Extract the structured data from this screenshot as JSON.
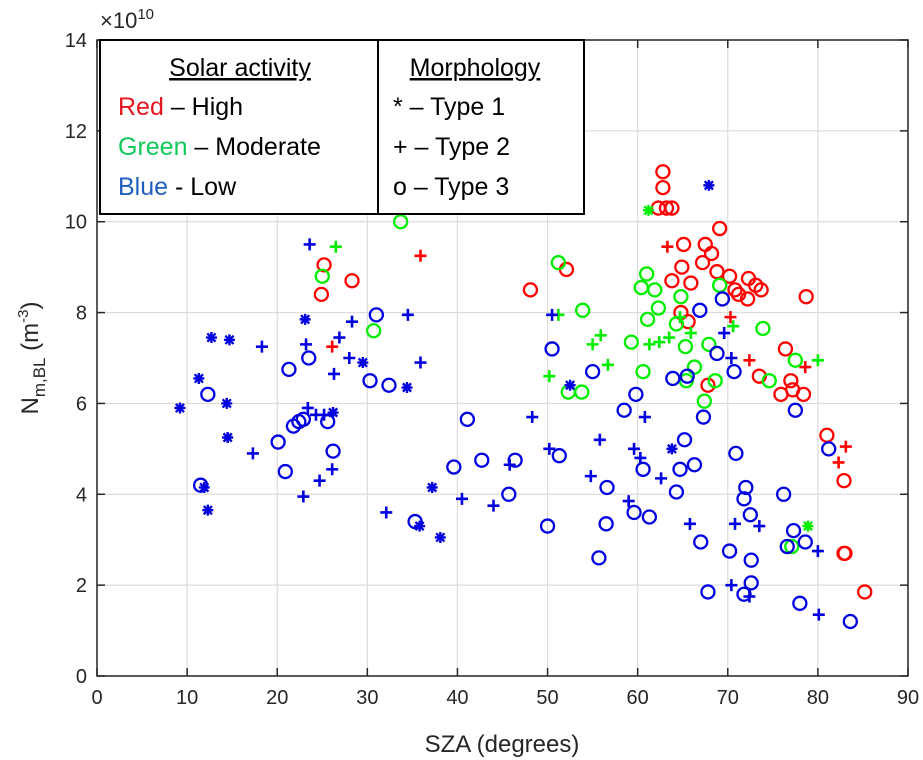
{
  "chart_data": {
    "type": "scatter",
    "xlabel": "SZA (degrees)",
    "ylabel_main": "N",
    "ylabel_sub": "m,BL",
    "ylabel_unit_pre": " (m",
    "ylabel_unit_sup": "-3",
    "ylabel_unit_post": ")",
    "y_exponent_base": "×10",
    "y_exponent_power": "10",
    "xlim": [
      0,
      90
    ],
    "ylim": [
      0,
      14
    ],
    "xticks": [
      0,
      10,
      20,
      30,
      40,
      50,
      60,
      70,
      80,
      90
    ],
    "yticks": [
      0,
      2,
      4,
      6,
      8,
      10,
      12,
      14
    ],
    "grid": true,
    "legend": {
      "solar_header": "Solar activity",
      "morph_header": "Morphology",
      "solar_items": [
        {
          "color_word": "Red",
          "sep": " – ",
          "level": "High",
          "color": "#e8141e"
        },
        {
          "color_word": "Green",
          "sep": " – ",
          "level": "Moderate",
          "color": "#11c95a"
        },
        {
          "color_word": "Blue",
          "sep": " - ",
          "level": "Low",
          "color": "#1f5fbf"
        }
      ],
      "morph_items": [
        {
          "symbol": "*",
          "sep": " – ",
          "label": "Type 1"
        },
        {
          "symbol": "+",
          "sep": " – ",
          "label": "Type 2"
        },
        {
          "symbol": "o",
          "sep": " – ",
          "label": "Type 3"
        }
      ]
    },
    "colors": {
      "red": "#ff0000",
      "green": "#00ee00",
      "blue": "#0000e0"
    },
    "series": [
      {
        "name": "Red Type 1",
        "color": "red",
        "marker": "*",
        "points": []
      },
      {
        "name": "Red Type 2",
        "color": "red",
        "marker": "+",
        "points": [
          [
            26.1,
            7.25
          ],
          [
            35.9,
            9.25
          ],
          [
            63.3,
            9.45
          ],
          [
            70.3,
            7.9
          ],
          [
            72.4,
            6.95
          ],
          [
            78.6,
            6.8
          ],
          [
            82.3,
            4.7
          ],
          [
            83.1,
            5.05
          ]
        ]
      },
      {
        "name": "Red Type 3",
        "color": "red",
        "marker": "o",
        "points": [
          [
            24.9,
            8.4
          ],
          [
            25.2,
            9.05
          ],
          [
            28.3,
            8.7
          ],
          [
            48.1,
            8.5
          ],
          [
            52.1,
            8.95
          ],
          [
            62.8,
            11.1
          ],
          [
            62.8,
            10.75
          ],
          [
            63.2,
            10.3
          ],
          [
            63.8,
            10.3
          ],
          [
            65.1,
            9.5
          ],
          [
            65.6,
            7.8
          ],
          [
            62.3,
            10.3
          ],
          [
            63.8,
            8.7
          ],
          [
            64.8,
            8.0
          ],
          [
            64.9,
            9.0
          ],
          [
            65.9,
            8.65
          ],
          [
            67.2,
            9.1
          ],
          [
            67.5,
            9.5
          ],
          [
            68.2,
            9.3
          ],
          [
            68.8,
            8.9
          ],
          [
            69.1,
            9.85
          ],
          [
            70.2,
            8.8
          ],
          [
            70.8,
            8.5
          ],
          [
            71.2,
            8.4
          ],
          [
            72.2,
            8.3
          ],
          [
            72.3,
            8.75
          ],
          [
            73.1,
            8.6
          ],
          [
            73.7,
            8.5
          ],
          [
            73.5,
            6.6
          ],
          [
            75.9,
            6.2
          ],
          [
            76.4,
            7.2
          ],
          [
            77.0,
            6.5
          ],
          [
            77.2,
            6.3
          ],
          [
            78.4,
            6.2
          ],
          [
            78.7,
            8.35
          ],
          [
            81.0,
            5.3
          ],
          [
            82.9,
            2.7
          ],
          [
            83.0,
            2.7
          ],
          [
            82.9,
            4.3
          ],
          [
            85.2,
            1.85
          ],
          [
            67.8,
            6.4
          ]
        ]
      },
      {
        "name": "Green Type 1",
        "color": "green",
        "marker": "*",
        "points": [
          [
            61.2,
            10.25
          ],
          [
            78.9,
            3.3
          ]
        ]
      },
      {
        "name": "Green Type 2",
        "color": "green",
        "marker": "+",
        "points": [
          [
            26.5,
            9.45
          ],
          [
            50.2,
            6.6
          ],
          [
            51.2,
            7.95
          ],
          [
            55.0,
            7.3
          ],
          [
            55.9,
            7.5
          ],
          [
            56.7,
            6.85
          ],
          [
            61.3,
            7.3
          ],
          [
            62.4,
            7.35
          ],
          [
            63.5,
            7.45
          ],
          [
            64.7,
            7.9
          ],
          [
            65.9,
            7.55
          ],
          [
            70.6,
            7.7
          ],
          [
            80.0,
            6.95
          ]
        ]
      },
      {
        "name": "Green Type 3",
        "color": "green",
        "marker": "o",
        "points": [
          [
            25.0,
            8.8
          ],
          [
            30.7,
            7.6
          ],
          [
            33.7,
            10.0
          ],
          [
            51.2,
            9.1
          ],
          [
            52.3,
            6.25
          ],
          [
            53.8,
            6.25
          ],
          [
            53.9,
            8.05
          ],
          [
            59.3,
            7.35
          ],
          [
            60.4,
            8.55
          ],
          [
            60.6,
            6.7
          ],
          [
            61.0,
            8.85
          ],
          [
            61.1,
            7.85
          ],
          [
            61.9,
            8.5
          ],
          [
            62.3,
            8.1
          ],
          [
            64.3,
            7.75
          ],
          [
            64.8,
            8.35
          ],
          [
            65.3,
            7.25
          ],
          [
            65.4,
            6.5
          ],
          [
            66.3,
            6.8
          ],
          [
            67.4,
            6.05
          ],
          [
            67.9,
            7.3
          ],
          [
            68.6,
            6.5
          ],
          [
            69.1,
            8.6
          ],
          [
            73.9,
            7.65
          ],
          [
            74.6,
            6.5
          ],
          [
            77.1,
            2.85
          ],
          [
            77.5,
            6.95
          ]
        ]
      },
      {
        "name": "Blue Type 1",
        "color": "blue",
        "marker": "*",
        "points": [
          [
            9.2,
            5.9
          ],
          [
            11.3,
            6.55
          ],
          [
            11.9,
            4.15
          ],
          [
            12.3,
            3.65
          ],
          [
            12.7,
            7.45
          ],
          [
            14.4,
            6.0
          ],
          [
            14.5,
            5.25
          ],
          [
            14.7,
            7.4
          ],
          [
            23.1,
            7.85
          ],
          [
            26.2,
            5.8
          ],
          [
            29.5,
            6.9
          ],
          [
            34.4,
            6.35
          ],
          [
            35.8,
            3.3
          ],
          [
            37.2,
            4.15
          ],
          [
            38.1,
            3.05
          ],
          [
            52.5,
            6.4
          ],
          [
            63.8,
            5.0
          ],
          [
            67.9,
            10.8
          ]
        ]
      },
      {
        "name": "Blue Type 2",
        "color": "blue",
        "marker": "+",
        "points": [
          [
            17.3,
            4.9
          ],
          [
            18.3,
            7.25
          ],
          [
            22.9,
            3.95
          ],
          [
            23.2,
            7.3
          ],
          [
            23.4,
            5.9
          ],
          [
            23.6,
            9.5
          ],
          [
            24.3,
            5.75
          ],
          [
            24.7,
            4.3
          ],
          [
            25.2,
            5.75
          ],
          [
            26.1,
            4.55
          ],
          [
            26.3,
            6.65
          ],
          [
            26.9,
            7.45
          ],
          [
            28.0,
            7.0
          ],
          [
            28.3,
            7.8
          ],
          [
            32.1,
            3.6
          ],
          [
            34.5,
            7.95
          ],
          [
            35.9,
            6.9
          ],
          [
            40.5,
            3.9
          ],
          [
            44.0,
            3.75
          ],
          [
            45.8,
            4.65
          ],
          [
            48.3,
            5.7
          ],
          [
            50.2,
            5.0
          ],
          [
            50.5,
            7.95
          ],
          [
            54.8,
            4.4
          ],
          [
            55.8,
            5.2
          ],
          [
            59.0,
            3.85
          ],
          [
            59.6,
            5.0
          ],
          [
            60.3,
            4.8
          ],
          [
            60.8,
            5.7
          ],
          [
            62.6,
            4.35
          ],
          [
            65.8,
            3.35
          ],
          [
            69.6,
            7.55
          ],
          [
            70.4,
            7.0
          ],
          [
            70.8,
            3.35
          ],
          [
            70.4,
            2.0
          ],
          [
            72.4,
            1.75
          ],
          [
            73.5,
            3.3
          ],
          [
            80.0,
            2.75
          ],
          [
            80.1,
            1.35
          ]
        ]
      },
      {
        "name": "Blue Type 3",
        "color": "blue",
        "marker": "o",
        "points": [
          [
            11.5,
            4.2
          ],
          [
            12.3,
            6.2
          ],
          [
            20.1,
            5.15
          ],
          [
            20.9,
            4.5
          ],
          [
            21.3,
            6.75
          ],
          [
            21.8,
            5.5
          ],
          [
            22.4,
            5.6
          ],
          [
            22.9,
            5.65
          ],
          [
            23.5,
            7.0
          ],
          [
            25.6,
            5.6
          ],
          [
            26.2,
            4.95
          ],
          [
            30.3,
            6.5
          ],
          [
            31.0,
            7.95
          ],
          [
            32.4,
            6.4
          ],
          [
            35.3,
            3.4
          ],
          [
            39.6,
            4.6
          ],
          [
            41.1,
            5.65
          ],
          [
            42.7,
            4.75
          ],
          [
            45.7,
            4.0
          ],
          [
            46.4,
            4.75
          ],
          [
            50.0,
            3.3
          ],
          [
            50.5,
            7.2
          ],
          [
            51.3,
            4.85
          ],
          [
            55.0,
            6.7
          ],
          [
            55.7,
            2.6
          ],
          [
            56.5,
            3.35
          ],
          [
            56.6,
            4.15
          ],
          [
            58.5,
            5.85
          ],
          [
            59.6,
            3.6
          ],
          [
            59.8,
            6.2
          ],
          [
            60.6,
            4.55
          ],
          [
            61.3,
            3.5
          ],
          [
            63.9,
            6.55
          ],
          [
            64.3,
            4.05
          ],
          [
            64.7,
            4.55
          ],
          [
            65.2,
            5.2
          ],
          [
            65.5,
            6.6
          ],
          [
            66.3,
            4.65
          ],
          [
            66.9,
            8.05
          ],
          [
            67.0,
            2.95
          ],
          [
            67.3,
            5.7
          ],
          [
            67.8,
            1.85
          ],
          [
            68.8,
            7.1
          ],
          [
            69.4,
            8.3
          ],
          [
            70.2,
            2.75
          ],
          [
            70.7,
            6.7
          ],
          [
            70.9,
            4.9
          ],
          [
            71.8,
            1.8
          ],
          [
            71.8,
            3.9
          ],
          [
            72.0,
            4.15
          ],
          [
            72.5,
            3.55
          ],
          [
            72.6,
            2.55
          ],
          [
            72.6,
            2.05
          ],
          [
            76.2,
            4.0
          ],
          [
            76.6,
            2.85
          ],
          [
            77.3,
            3.2
          ],
          [
            77.5,
            5.85
          ],
          [
            78.0,
            1.6
          ],
          [
            78.6,
            2.95
          ],
          [
            81.2,
            5.0
          ],
          [
            83.6,
            1.2
          ]
        ]
      }
    ]
  }
}
